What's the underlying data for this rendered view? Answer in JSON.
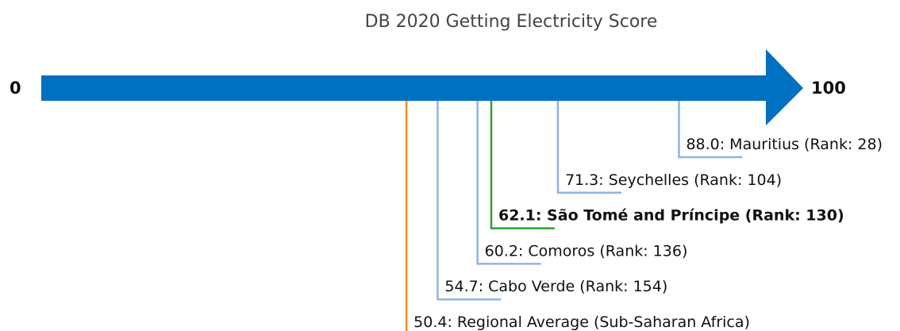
{
  "chart_data": {
    "type": "number-line",
    "title": "DB 2020 Getting Electricity Score",
    "xlim": [
      0,
      100
    ],
    "xticks": [
      0,
      100
    ],
    "axis_color": "#0070c0",
    "values": [
      88.0,
      71.3,
      62.1,
      60.2,
      54.7,
      50.4
    ],
    "value_labels": [
      "88.0: Mauritius (Rank: 28)",
      "71.3: Seychelles (Rank: 104)",
      "62.1: São Tomé and Príncipe (Rank: 130)",
      "60.2: Comoros (Rank: 136)",
      "54.7: Cabo Verde (Rank: 154)",
      "50.4: Regional Average (Sub-Saharan Africa)"
    ],
    "colors": [
      "#8db4e6",
      "#8db4e6",
      "#2ca02c",
      "#8db4e6",
      "#8db4e6",
      "#f08c1e"
    ],
    "bold": [
      false,
      false,
      true,
      false,
      false,
      false
    ]
  }
}
